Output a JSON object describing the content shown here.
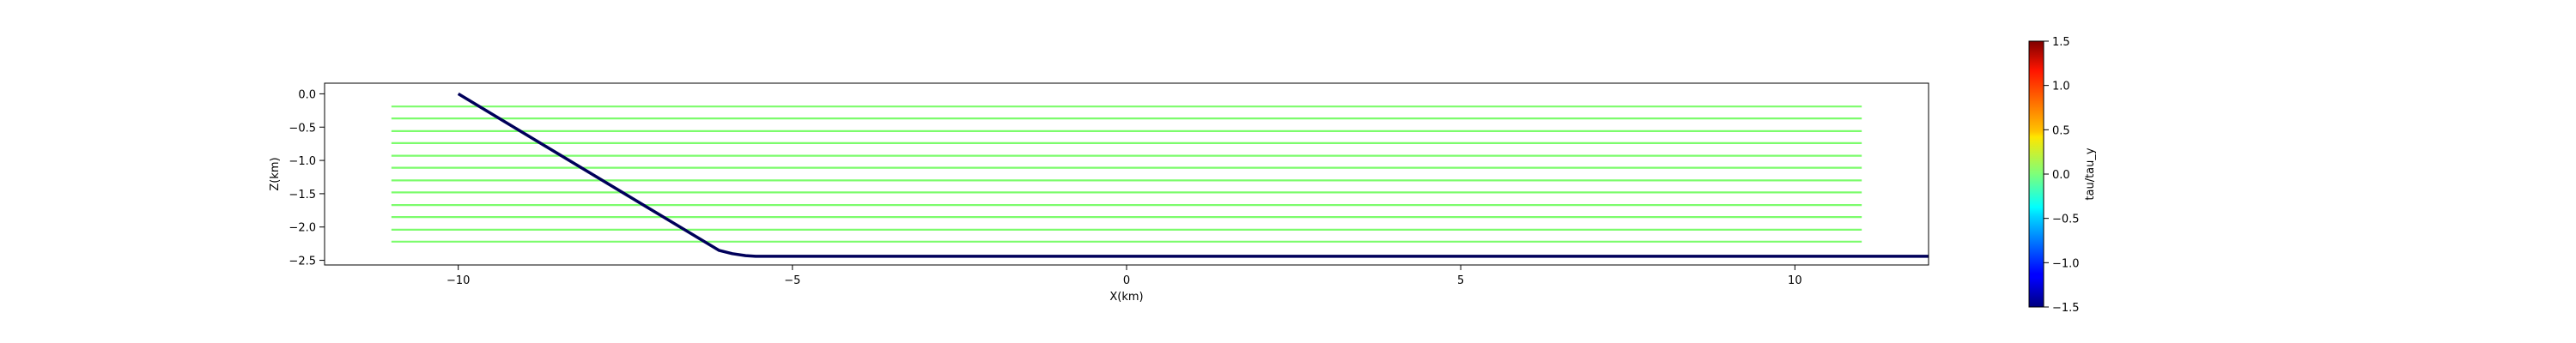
{
  "chart_data": [
    {
      "type": "line",
      "xlabel": "X(km)",
      "ylabel": "Z(km)",
      "xlim": [
        -12,
        12
      ],
      "ylim": [
        -2.57,
        0.16
      ],
      "xticks": [
        -10,
        -5,
        0,
        5,
        10
      ],
      "xtick_labels": [
        "−10",
        "−5",
        "0",
        "5",
        "10"
      ],
      "yticks": [
        0.0,
        -0.5,
        -1.0,
        -1.5,
        -2.0,
        -2.5
      ],
      "ytick_labels": [
        "0.0",
        "−0.5",
        "−1.0",
        "−1.5",
        "−2.0",
        "−2.5"
      ],
      "grid": false,
      "colors": {
        "fault": "#00005a",
        "receivers": "#7cfc6c"
      },
      "series": [
        {
          "kind": "fault-trace",
          "x": [
            -10.0,
            -6.1,
            -5.9,
            -5.7,
            -5.55,
            12.0
          ],
          "y": [
            0.0,
            -2.35,
            -2.4,
            -2.43,
            -2.44,
            -2.44
          ]
        },
        {
          "kind": "receiver-lines",
          "x_start": -11.0,
          "x_end": 11.0,
          "depths": [
            -0.19,
            -0.37,
            -0.56,
            -0.74,
            -0.93,
            -1.11,
            -1.3,
            -1.48,
            -1.67,
            -1.85,
            -2.04,
            -2.22
          ]
        }
      ]
    },
    {
      "type": "heatmap",
      "role": "colorbar",
      "label": "tau/tau_y",
      "vmin": -1.5,
      "vmax": 1.5,
      "colormap": "jet",
      "ticks": [
        1.5,
        1.0,
        0.5,
        0.0,
        -0.5,
        -1.0,
        -1.5
      ],
      "tick_labels": [
        "1.5",
        "1.0",
        "0.5",
        "0.0",
        "−0.5",
        "−1.0",
        "−1.5"
      ]
    }
  ]
}
